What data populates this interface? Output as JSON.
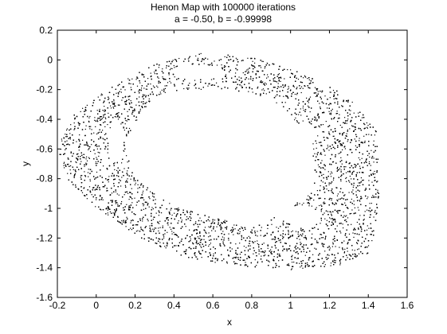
{
  "chart_data": {
    "type": "scatter",
    "title": "Henon Map with 100000 iterations",
    "subtitle": "a = -0.50, b = -0.99998",
    "xlabel": "x",
    "ylabel": "y",
    "xlim": [
      -0.2,
      1.6
    ],
    "ylim": [
      -1.6,
      0.2
    ],
    "xticks": [
      "-0.2",
      "0",
      "0.2",
      "0.4",
      "0.6",
      "0.8",
      "1",
      "1.2",
      "1.4",
      "1.6"
    ],
    "yticks": [
      "0.2",
      "0",
      "-0.2",
      "-0.4",
      "-0.6",
      "-0.8",
      "-1",
      "-1.2",
      "-1.4",
      "-1.6"
    ],
    "grid": false,
    "legend": "none",
    "series": [
      {
        "color": "#000000",
        "marker": "point"
      }
    ],
    "outer_boundary": [
      [
        0.05,
        -0.2
      ],
      [
        0.3,
        -0.02
      ],
      [
        0.55,
        0.05
      ],
      [
        0.8,
        0.02
      ],
      [
        1.05,
        -0.08
      ],
      [
        1.3,
        -0.25
      ],
      [
        1.44,
        -0.48
      ],
      [
        1.46,
        -0.8
      ],
      [
        1.44,
        -1.1
      ],
      [
        1.4,
        -1.3
      ],
      [
        1.25,
        -1.38
      ],
      [
        1.0,
        -1.41
      ],
      [
        0.7,
        -1.38
      ],
      [
        0.45,
        -1.33
      ],
      [
        0.2,
        -1.18
      ],
      [
        0.0,
        -1.0
      ],
      [
        -0.15,
        -0.8
      ],
      [
        -0.2,
        -0.6
      ],
      [
        -0.15,
        -0.4
      ]
    ],
    "inner_boundary": [
      [
        0.3,
        -0.24
      ],
      [
        0.5,
        -0.2
      ],
      [
        0.7,
        -0.2
      ],
      [
        0.9,
        -0.26
      ],
      [
        1.06,
        -0.45
      ],
      [
        1.12,
        -0.68
      ],
      [
        1.12,
        -0.87
      ],
      [
        0.95,
        -1.04
      ],
      [
        0.8,
        -1.12
      ],
      [
        0.6,
        -1.06
      ],
      [
        0.4,
        -0.98
      ],
      [
        0.2,
        -0.8
      ],
      [
        0.15,
        -0.62
      ],
      [
        0.18,
        -0.45
      ]
    ],
    "hollow_islands": [
      {
        "cx": 0.53,
        "cy": -0.08,
        "rx": 0.13,
        "ry": 0.05,
        "angle": 0
      },
      {
        "cx": 0.1,
        "cy": -0.55,
        "rx": 0.04,
        "ry": 0.13,
        "angle": 0
      },
      {
        "cx": 1.05,
        "cy": -0.55,
        "rx": 0.12,
        "ry": 0.06,
        "angle": 55
      },
      {
        "cx": 1.05,
        "cy": -1.05,
        "rx": 0.1,
        "ry": 0.07,
        "angle": -10
      }
    ]
  }
}
